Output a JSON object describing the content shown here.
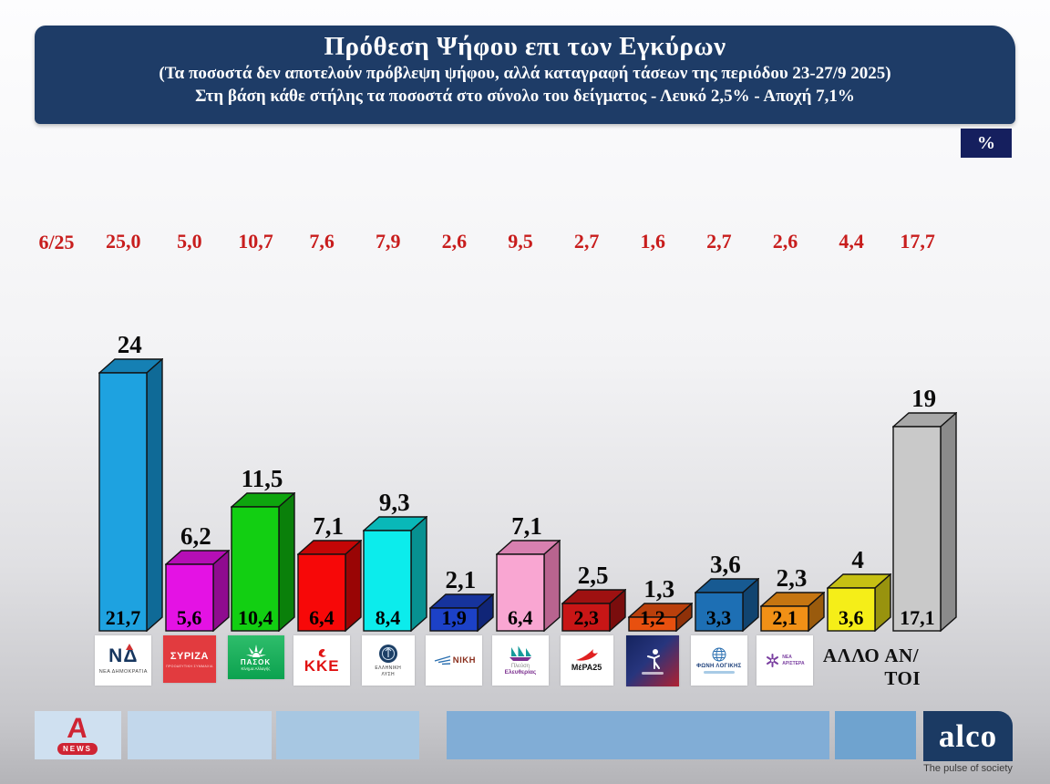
{
  "header": {
    "title": "Πρόθεση Ψήφου επι των Εγκύρων",
    "subtitle1": "(Τα ποσοστά δεν αποτελούν πρόβλεψη ψήφου, αλλά καταγραφή τάσεων της περιόδου  23-27/9 2025)",
    "subtitle2": "Στη βάση κάθε στήλης τα ποσοστά στο σύνολο του δείγματος - Λευκό 2,5% - Αποχή 7,1%",
    "unit_badge": "%",
    "bg_color": "#1e3c67"
  },
  "labels": {
    "previous_period": "6/25"
  },
  "chart_data": {
    "type": "bar",
    "style": "3d-columns",
    "unit": "%",
    "title": "Πρόθεση Ψήφου επι των Εγκύρων",
    "categories": [
      "ΝΕΑ ΔΗΜΟΚΡΑΤΙΑ",
      "ΣΥΡΙΖΑ",
      "ΠΑΣΟΚ",
      "ΚΚΕ",
      "ΕΛΛΗΝΙΚΗ ΛΥΣΗ",
      "ΝΙΚΗ",
      "ΠΛΕΥΣΗ ΕΛΕΥΘΕΡΙΑΣ",
      "ΜέΡΑ25",
      "ΚΙΝΗΜΑ ΔΗΜΟΚΡΑΤΙΑΣ",
      "ΦΩΝΗ ΛΟΓΙΚΗΣ",
      "ΝΕΑ ΑΡΙΣΤΕΡΑ",
      "ΑΛΛΟ",
      "ΑΝ/ΤΟΙ"
    ],
    "series": [
      {
        "name": "6/25 (προηγούμενη περίοδος)",
        "color": "#c81d1d",
        "values": [
          25.0,
          5.0,
          10.7,
          7.6,
          7.9,
          2.6,
          9.5,
          2.7,
          1.6,
          2.7,
          2.6,
          4.4,
          17.7
        ]
      },
      {
        "name": "Επί των εγκύρων 23-27/9 2025",
        "values": [
          24,
          6.2,
          11.5,
          7.1,
          9.3,
          2.1,
          7.1,
          2.5,
          1.3,
          3.6,
          2.3,
          4,
          19
        ]
      },
      {
        "name": "Στο σύνολο του δείγματος",
        "values": [
          21.7,
          5.6,
          10.4,
          6.4,
          8.4,
          1.9,
          6.4,
          2.3,
          1.2,
          3.3,
          2.1,
          3.6,
          17.1
        ]
      }
    ],
    "ylim": [
      0,
      25
    ],
    "grid": false,
    "legend": false
  },
  "parties": [
    {
      "id": "nea-dimokratia",
      "prev": "25,0",
      "valid": "24",
      "valid_num": 24,
      "total": "21,7",
      "front": "#1ea2e0",
      "top": "#1580b4",
      "side": "#0f6a97",
      "logo": {
        "type": "nd",
        "main": "ΝΔ",
        "caption": "ΝΕΑ ΔΗΜΟΚΡΑΤΙΑ",
        "color": "#16365f",
        "accent": "#d03030"
      }
    },
    {
      "id": "syriza",
      "prev": "5,0",
      "valid": "6,2",
      "valid_num": 6.2,
      "total": "5,6",
      "front": "#e412e4",
      "top": "#b50eb5",
      "side": "#8f0b8f",
      "logo": {
        "type": "syriza",
        "main": "ΣΥΡΙΖΑ",
        "sub": "ΠΡΟΟΔΕΥΤΙΚΗ ΣΥΜΜΑΧΙΑ",
        "bg": "#e23b3f"
      }
    },
    {
      "id": "pasok",
      "prev": "10,7",
      "valid": "11,5",
      "valid_num": 11.5,
      "total": "10,4",
      "front": "#12cf12",
      "top": "#0ea50e",
      "side": "#0a800a",
      "logo": {
        "type": "pasok",
        "main": "ΠΑΣΟΚ",
        "sub": "Κίνημα Αλλαγής",
        "bg": "#0ca24f"
      }
    },
    {
      "id": "kke",
      "prev": "7,6",
      "valid": "7,1",
      "valid_num": 7.1,
      "total": "6,4",
      "front": "#f70808",
      "top": "#c40606",
      "side": "#990505",
      "logo": {
        "type": "kke",
        "main": "ΚΚΕ",
        "color": "#e01212"
      }
    },
    {
      "id": "elliniki-lysi",
      "prev": "7,9",
      "valid": "9,3",
      "valid_num": 9.3,
      "total": "8,4",
      "front": "#0cecec",
      "top": "#09b8b8",
      "side": "#079191",
      "logo": {
        "type": "emblem",
        "caption1": "ΕΛΛΗΝΙΚΗ",
        "caption2": "ΛΥΣΗ",
        "color": "#1c3f66"
      }
    },
    {
      "id": "niki",
      "prev": "2,6",
      "valid": "2,1",
      "valid_num": 2.1,
      "total": "1,9",
      "front": "#1c41c7",
      "top": "#16339c",
      "side": "#102577",
      "logo": {
        "type": "niki",
        "main": "ΝΙΚΗ",
        "color": "#8a2f1d",
        "wing": "#2a6fb0"
      }
    },
    {
      "id": "plefsi-eleftherias",
      "prev": "9,5",
      "valid": "7,1",
      "valid_num": 7.1,
      "total": "6,4",
      "front": "#f9a6d2",
      "top": "#d880b0",
      "side": "#b8648f",
      "logo": {
        "type": "plefsi",
        "line1": "Πλεύση",
        "line2": "Ελευθερίας",
        "sail": "#169a9a",
        "hull": "#7c3190"
      }
    },
    {
      "id": "mera25",
      "prev": "2,7",
      "valid": "2,5",
      "valid_num": 2.5,
      "total": "2,3",
      "front": "#c81616",
      "top": "#9e1111",
      "side": "#7a0d0d",
      "logo": {
        "type": "mera",
        "main": "ΜέΡΑ25",
        "accent": "#e02020"
      }
    },
    {
      "id": "kinima-dimokratias",
      "prev": "1,6",
      "valid": "1,3",
      "valid_num": 1.3,
      "total": "1,2",
      "front": "#e8500f",
      "top": "#ba400c",
      "side": "#8f3109",
      "logo": {
        "type": "kinima"
      }
    },
    {
      "id": "foni-logikis",
      "prev": "2,7",
      "valid": "3,6",
      "valid_num": 3.6,
      "total": "3,3",
      "front": "#1d6fb4",
      "top": "#175a92",
      "side": "#114470",
      "logo": {
        "type": "foni",
        "main": "ΦΩΝΗ ΛΟΓΙΚΗΣ",
        "color": "#1c3f7a"
      }
    },
    {
      "id": "nea-aristera",
      "prev": "2,6",
      "valid": "2,3",
      "valid_num": 2.3,
      "total": "2,1",
      "front": "#f19016",
      "top": "#c57511",
      "side": "#9a5b0d",
      "logo": {
        "type": "nea-aristera",
        "line1": "ΝΕΑ",
        "line2": "ΑΡΙΣΤΕΡΑ",
        "color": "#7a3fa0"
      }
    },
    {
      "id": "allo",
      "prev": "4,4",
      "valid": "4",
      "valid_num": 4,
      "total": "3,6",
      "front": "#f5ee18",
      "top": "#c6c013",
      "side": "#98930e",
      "logo": {
        "type": "text",
        "main": "ΑΛΛΟ"
      }
    },
    {
      "id": "anapofasistoi",
      "prev": "17,7",
      "valid": "19",
      "valid_num": 19,
      "total": "17,1",
      "front": "#c9c9c9",
      "top": "#a8a8a8",
      "side": "#8b8b8b",
      "logo": {
        "type": "text",
        "main": "ΑΝ/ΤΟΙ"
      }
    }
  ],
  "footer": {
    "alpha": {
      "letter": "A",
      "news_label": "NEWS",
      "color": "#cf2433"
    },
    "alco": {
      "name": "alco",
      "tagline": "The pulse of society",
      "bg": "#1b3a63"
    },
    "segment_colors": [
      "#cfe0f0",
      "#c2d7eb",
      "#a7c7e2",
      "#81add6",
      "#6fa3cf"
    ]
  }
}
